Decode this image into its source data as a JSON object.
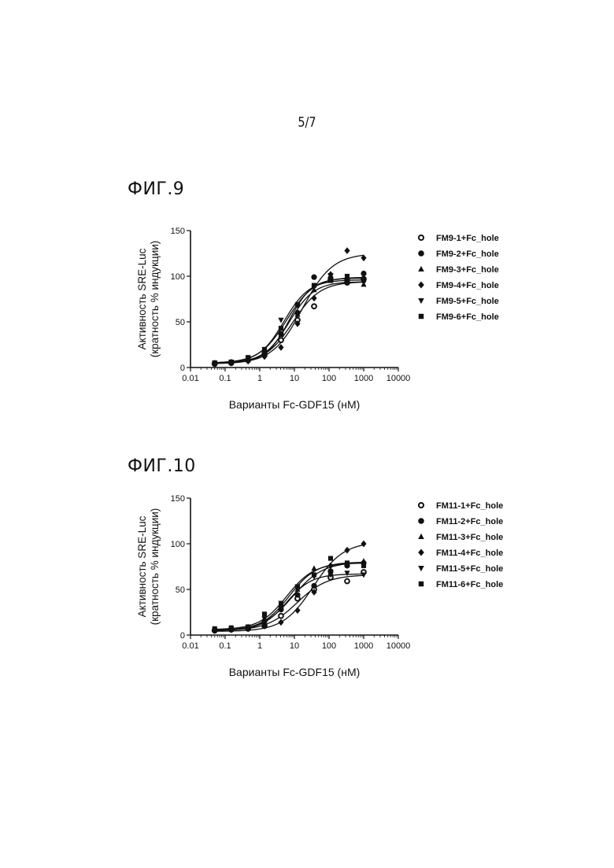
{
  "page": {
    "number": "5/7"
  },
  "figures": [
    {
      "label": "ФИГ.9"
    },
    {
      "label": "ФИГ.10"
    }
  ],
  "chart_data": [
    {
      "type": "scatter",
      "xscale": "log",
      "xlim": [
        0.01,
        10000
      ],
      "ylim": [
        0,
        150
      ],
      "xticks": [
        0.01,
        0.1,
        1,
        10,
        100,
        1000,
        10000
      ],
      "xtick_labels": [
        "0.01",
        "0.1",
        "1",
        "10",
        "100",
        "1000",
        "10000"
      ],
      "yticks": [
        0,
        50,
        100,
        150
      ],
      "ytick_labels": [
        "0",
        "50",
        "100",
        "150"
      ],
      "xlabel": "Варианты Fc-GDF15 (нМ)",
      "ylabel_lines": [
        "Активность SRE-Luc",
        "(кратность % индукции)"
      ],
      "legend_position": "right",
      "grid": false,
      "x": [
        0.05,
        0.15,
        0.46,
        1.37,
        4.1,
        12.3,
        37,
        111,
        333,
        1000
      ],
      "series": [
        {
          "name": "FM9-1+Fc_hole",
          "marker": "circle-open",
          "values": [
            4,
            5,
            8,
            14,
            30,
            52,
            67,
            96,
            93,
            97
          ],
          "curve": {
            "bottom": 5,
            "top": 94,
            "ec50": 9,
            "hill": 1.1
          }
        },
        {
          "name": "FM9-2+Fc_hole",
          "marker": "circle",
          "values": [
            5,
            6,
            9,
            16,
            37,
            60,
            99,
            98,
            96,
            103
          ],
          "curve": {
            "bottom": 5,
            "top": 98,
            "ec50": 7,
            "hill": 1.3
          }
        },
        {
          "name": "FM9-3+Fc_hole",
          "marker": "triangle-up",
          "values": [
            5,
            6,
            9,
            17,
            36,
            58,
            85,
            95,
            94,
            91
          ],
          "curve": {
            "bottom": 5,
            "top": 94,
            "ec50": 7,
            "hill": 1.2
          }
        },
        {
          "name": "FM9-4+Fc_hole",
          "marker": "diamond",
          "values": [
            4,
            5,
            7,
            12,
            22,
            48,
            76,
            102,
            128,
            120
          ],
          "curve": {
            "bottom": 4,
            "top": 125,
            "ec50": 17,
            "hill": 1.0
          }
        },
        {
          "name": "FM9-5+Fc_hole",
          "marker": "triangle-down",
          "values": [
            5,
            6,
            10,
            20,
            52,
            68,
            88,
            101,
            95,
            93
          ],
          "curve": {
            "bottom": 5,
            "top": 96,
            "ec50": 5,
            "hill": 1.2
          }
        },
        {
          "name": "FM9-6+Fc_hole",
          "marker": "square",
          "values": [
            5,
            6,
            11,
            19,
            43,
            69,
            90,
            97,
            100,
            96
          ],
          "curve": {
            "bottom": 5,
            "top": 99,
            "ec50": 6,
            "hill": 1.1
          }
        }
      ]
    },
    {
      "type": "scatter",
      "xscale": "log",
      "xlim": [
        0.01,
        10000
      ],
      "ylim": [
        0,
        150
      ],
      "xticks": [
        0.01,
        0.1,
        1,
        10,
        100,
        1000,
        10000
      ],
      "xtick_labels": [
        "0.01",
        "0.1",
        "1",
        "10",
        "100",
        "1000",
        "10000"
      ],
      "yticks": [
        0,
        50,
        100,
        150
      ],
      "ytick_labels": [
        "0",
        "50",
        "100",
        "150"
      ],
      "xlabel": "Варианты Fc-GDF15 (нМ)",
      "ylabel_lines": [
        "Активность SRE-Luc",
        "(кратность % индукции)"
      ],
      "legend_position": "right",
      "grid": false,
      "x": [
        0.05,
        0.15,
        0.46,
        1.37,
        4.1,
        12.3,
        37,
        111,
        333,
        1000
      ],
      "series": [
        {
          "name": "FM11-1+Fc_hole",
          "marker": "circle-open",
          "values": [
            5,
            6,
            7,
            10,
            21,
            40,
            50,
            63,
            59,
            69
          ],
          "curve": {
            "bottom": 5,
            "top": 66,
            "ec50": 12,
            "hill": 1.0
          }
        },
        {
          "name": "FM11-2+Fc_hole",
          "marker": "circle",
          "values": [
            5,
            6,
            8,
            15,
            28,
            44,
            54,
            70,
            76,
            79
          ],
          "curve": {
            "bottom": 5,
            "top": 80,
            "ec50": 9,
            "hill": 1.0
          }
        },
        {
          "name": "FM11-3+Fc_hole",
          "marker": "triangle-up",
          "values": [
            6,
            7,
            9,
            18,
            32,
            50,
            73,
            68,
            78,
            81
          ],
          "curve": {
            "bottom": 5,
            "top": 80,
            "ec50": 7,
            "hill": 1.1
          }
        },
        {
          "name": "FM11-4+Fc_hole",
          "marker": "diamond",
          "values": [
            5,
            6,
            7,
            10,
            14,
            27,
            47,
            76,
            93,
            100
          ],
          "curve": {
            "bottom": 4,
            "top": 102,
            "ec50": 35,
            "hill": 1.0
          }
        },
        {
          "name": "FM11-5+Fc_hole",
          "marker": "triangle-down",
          "values": [
            5,
            6,
            9,
            18,
            35,
            53,
            64,
            66,
            68,
            66
          ],
          "curve": {
            "bottom": 5,
            "top": 67,
            "ec50": 6,
            "hill": 1.2
          }
        },
        {
          "name": "FM11-6+Fc_hole",
          "marker": "square",
          "values": [
            7,
            8,
            9,
            23,
            33,
            53,
            66,
            84,
            79,
            76
          ],
          "curve": {
            "bottom": 6,
            "top": 79,
            "ec50": 6,
            "hill": 1.1
          }
        }
      ]
    }
  ]
}
